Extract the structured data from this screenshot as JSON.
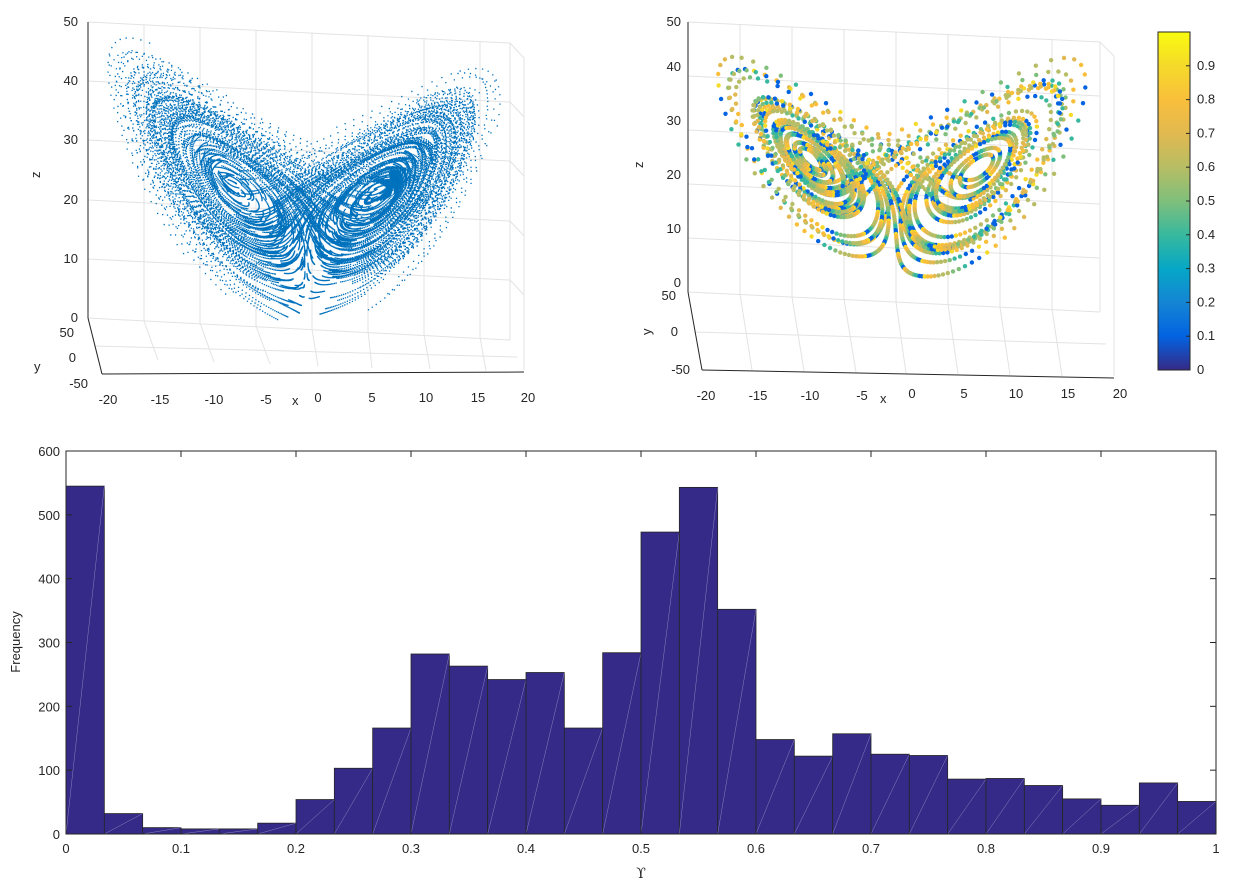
{
  "chart_data": [
    {
      "type": "scatter",
      "title": "",
      "xlabel": "x",
      "ylabel": "y",
      "zlabel": "z",
      "xlim": [
        -20,
        20
      ],
      "ylim": [
        -50,
        50
      ],
      "zlim": [
        0,
        50
      ],
      "xticks": [
        "-20",
        "-15",
        "-10",
        "-5",
        "0",
        "5",
        "10",
        "15",
        "20"
      ],
      "yticks": [
        "-50",
        "0",
        "50"
      ],
      "zticks": [
        "0",
        "10",
        "20",
        "30",
        "40",
        "50"
      ],
      "marker_color": "#0072BD",
      "grid": true,
      "description_series": "Lorenz attractor point cloud (dense)"
    },
    {
      "type": "scatter",
      "title": "",
      "xlabel": "x",
      "ylabel": "y",
      "zlabel": "z",
      "xlim": [
        -20,
        20
      ],
      "ylim": [
        -50,
        50
      ],
      "zlim": [
        0,
        50
      ],
      "xticks": [
        "-20",
        "-15",
        "-10",
        "-5",
        "0",
        "5",
        "10",
        "15",
        "20"
      ],
      "yticks": [
        "-50",
        "0",
        "50"
      ],
      "zticks": [
        "0",
        "10",
        "20",
        "30",
        "40",
        "50"
      ],
      "colormap": "parula",
      "colorbar_ticks": [
        "0",
        "0.1",
        "0.2",
        "0.3",
        "0.4",
        "0.5",
        "0.6",
        "0.7",
        "0.8",
        "0.9"
      ],
      "colorbar_range": [
        0,
        1
      ],
      "grid": true
    },
    {
      "type": "bar",
      "title": "",
      "xlabel": "ϒ",
      "ylabel": "Frequency",
      "xlim": [
        0,
        1
      ],
      "ylim": [
        0,
        600
      ],
      "xticks": [
        "0",
        "0.1",
        "0.2",
        "0.3",
        "0.4",
        "0.5",
        "0.6",
        "0.7",
        "0.8",
        "0.9",
        "1"
      ],
      "yticks": [
        "0",
        "100",
        "200",
        "300",
        "400",
        "500",
        "600"
      ],
      "bin_width": 0.0333,
      "bin_edges_start": 0,
      "values": [
        545,
        32,
        10,
        8,
        8,
        17,
        54,
        103,
        166,
        282,
        263,
        242,
        253,
        166,
        284,
        473,
        543,
        352,
        148,
        122,
        157,
        125,
        123,
        86,
        87,
        76,
        55,
        45,
        80,
        51
      ],
      "bar_color": "#352A87",
      "edge_color": "#262626"
    }
  ]
}
